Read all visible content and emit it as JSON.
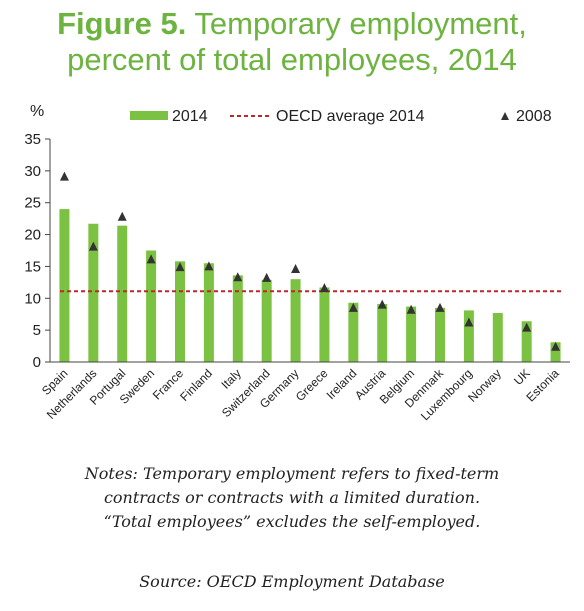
{
  "title": {
    "figure_label": "Figure 5.",
    "line1": "Temporary employment,",
    "line2": "percent of total employees, 2014"
  },
  "chart_data": {
    "type": "bar",
    "ylabel": "%",
    "ylim": [
      0,
      35
    ],
    "yticks": [
      0,
      5,
      10,
      15,
      20,
      25,
      30,
      35
    ],
    "grid": false,
    "legend_position": "top",
    "categories": [
      "Spain",
      "Netherlands",
      "Portugal",
      "Sweden",
      "France",
      "Finland",
      "Italy",
      "Switzerland",
      "Germany",
      "Greece",
      "Ireland",
      "Austria",
      "Belgium",
      "Denmark",
      "Luxembourg",
      "Norway",
      "UK",
      "Estonia"
    ],
    "series": [
      {
        "name": "2014",
        "kind": "bar",
        "color": "#7cc242",
        "values": [
          24.0,
          21.7,
          21.4,
          17.5,
          15.8,
          15.5,
          13.6,
          12.9,
          13.0,
          11.7,
          9.3,
          9.1,
          8.7,
          8.5,
          8.1,
          7.7,
          6.4,
          3.1
        ]
      },
      {
        "name": "2008",
        "kind": "marker",
        "color": "#333333",
        "values": [
          29.1,
          18.1,
          22.8,
          16.1,
          14.9,
          15.0,
          13.3,
          13.2,
          14.6,
          11.6,
          8.5,
          9.0,
          8.2,
          8.5,
          6.2,
          null,
          5.4,
          2.4
        ]
      },
      {
        "name": "OECD average 2014",
        "kind": "line",
        "color": "#c0272d",
        "value": 11.1
      }
    ]
  },
  "notes": {
    "line1": "Notes: Temporary employment refers to fixed-term",
    "line2": "contracts or contracts with a limited duration.",
    "line3": "“Total employees” excludes the self-employed."
  },
  "source": "Source: OECD Employment Database"
}
